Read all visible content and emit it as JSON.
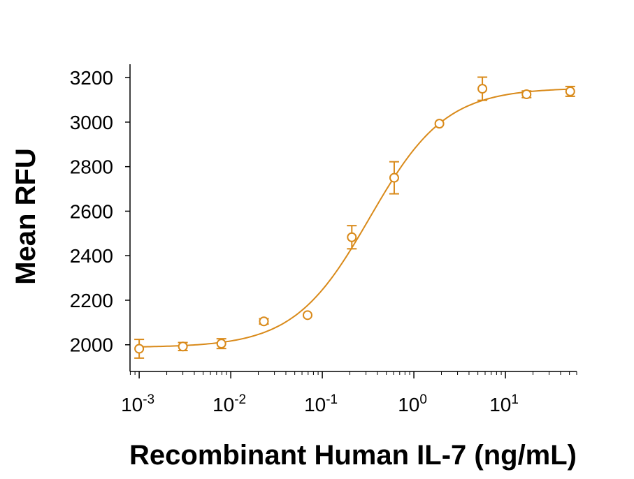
{
  "chart_data": {
    "type": "scatter",
    "title": "",
    "xlabel": "Recombinant Human IL-7 (ng/mL)",
    "ylabel": "Mean RFU",
    "x_scale": "log",
    "xlim": [
      0.000794,
      60
    ],
    "ylim": [
      1880,
      3260
    ],
    "grid": false,
    "legend": "none",
    "x_ticks": [
      {
        "value": 0.001,
        "base": "10",
        "exp": "-3"
      },
      {
        "value": 0.01,
        "base": "10",
        "exp": "-2"
      },
      {
        "value": 0.1,
        "base": "10",
        "exp": "-1"
      },
      {
        "value": 1,
        "base": "10",
        "exp": "0"
      },
      {
        "value": 10,
        "base": "10",
        "exp": "1"
      }
    ],
    "y_ticks": [
      {
        "value": 2000,
        "label": "2000"
      },
      {
        "value": 2200,
        "label": "2200"
      },
      {
        "value": 2400,
        "label": "2400"
      },
      {
        "value": 2600,
        "label": "2600"
      },
      {
        "value": 2800,
        "label": "2800"
      },
      {
        "value": 3000,
        "label": "3000"
      },
      {
        "value": 3200,
        "label": "3200"
      }
    ],
    "series": [
      {
        "color": "#D98A1A",
        "marker": "open-circle",
        "points": [
          {
            "x": 0.001,
            "y": 1982,
            "err": 42
          },
          {
            "x": 0.003,
            "y": 1992,
            "err": 18
          },
          {
            "x": 0.0079,
            "y": 2005,
            "err": 22
          },
          {
            "x": 0.023,
            "y": 2105,
            "err": 12
          },
          {
            "x": 0.069,
            "y": 2133,
            "err": 0
          },
          {
            "x": 0.21,
            "y": 2483,
            "err": 52
          },
          {
            "x": 0.61,
            "y": 2750,
            "err": 72
          },
          {
            "x": 1.9,
            "y": 2993,
            "err": 0
          },
          {
            "x": 5.6,
            "y": 3150,
            "err": 52
          },
          {
            "x": 17,
            "y": 3125,
            "err": 15
          },
          {
            "x": 51,
            "y": 3138,
            "err": 22
          }
        ],
        "fit": {
          "model": "4PL",
          "bottom": 1988,
          "top": 3154,
          "ec50": 0.33,
          "hill": 1.05
        }
      }
    ]
  }
}
